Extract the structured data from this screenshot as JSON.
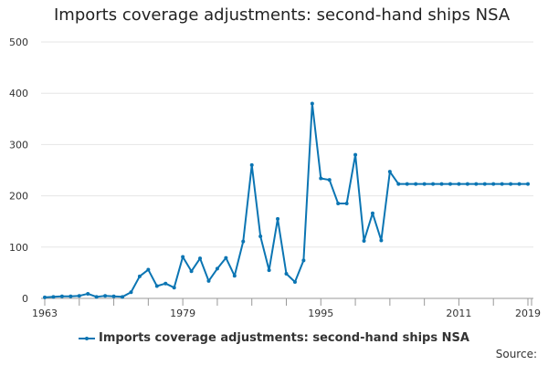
{
  "chart_data": {
    "type": "line",
    "title": "Imports coverage adjustments: second-hand ships NSA",
    "xlabel": "",
    "ylabel": "",
    "xlim": [
      1963,
      2019
    ],
    "ylim": [
      0,
      500
    ],
    "yticks": [
      0,
      100,
      200,
      300,
      400,
      500
    ],
    "xtick_labels": [
      "1963",
      "1979",
      "1995",
      "2011",
      "2019"
    ],
    "grid": true,
    "legend_position": "bottom",
    "series": [
      {
        "name": "Imports coverage adjustments: second-hand ships NSA",
        "color": "#0b75b3",
        "x": [
          1963,
          1964,
          1965,
          1966,
          1967,
          1968,
          1969,
          1970,
          1971,
          1972,
          1973,
          1974,
          1975,
          1976,
          1977,
          1978,
          1979,
          1980,
          1981,
          1982,
          1983,
          1984,
          1985,
          1986,
          1987,
          1988,
          1989,
          1990,
          1991,
          1992,
          1993,
          1994,
          1995,
          1996,
          1997,
          1998,
          1999,
          2000,
          2001,
          2002,
          2003,
          2004,
          2005,
          2006,
          2007,
          2008,
          2009,
          2010,
          2011,
          2012,
          2013,
          2014,
          2015,
          2016,
          2017,
          2018,
          2019
        ],
        "values": [
          2,
          3,
          4,
          4,
          5,
          9,
          3,
          5,
          4,
          3,
          12,
          43,
          56,
          24,
          29,
          21,
          81,
          53,
          78,
          34,
          58,
          79,
          44,
          111,
          260,
          121,
          55,
          155,
          48,
          32,
          74,
          380,
          234,
          231,
          185,
          185,
          280,
          112,
          166,
          113,
          247,
          223,
          223,
          223,
          223,
          223,
          223,
          223,
          223,
          223,
          223,
          223,
          223,
          223,
          223,
          223,
          223
        ]
      }
    ]
  },
  "source_label": "Source:"
}
